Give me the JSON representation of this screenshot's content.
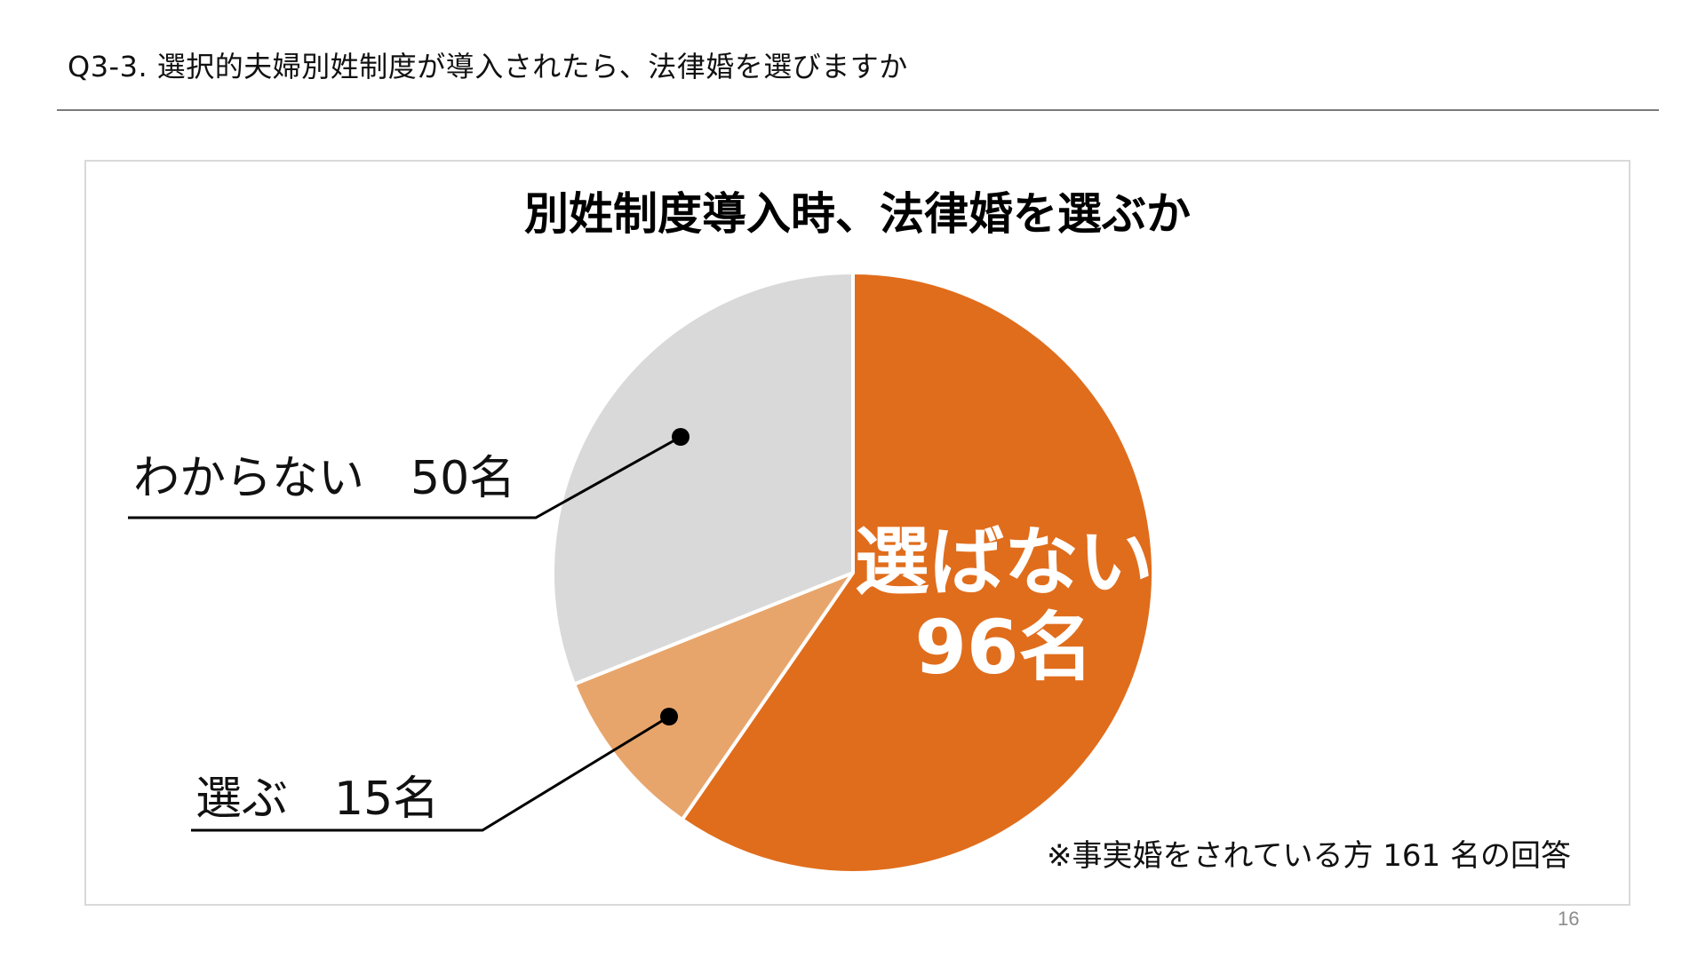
{
  "slide": {
    "heading": "Q3-3. 選択的夫婦別姓制度が導入されたら、法律婚を選びますか",
    "page_number": "16"
  },
  "chart_data": {
    "type": "pie",
    "title": "別姓制度導入時、法律婚を選ぶか",
    "categories": [
      "選ばない",
      "選ぶ",
      "わからない"
    ],
    "values": [
      96,
      15,
      50
    ],
    "unit": "名",
    "colors": [
      "#e06d1c",
      "#e8a56b",
      "#d9d9d9"
    ],
    "labels": {
      "not_choose_name": "選ばない",
      "not_choose_value": "96名",
      "choose": "選ぶ　15名",
      "unknown": "わからない　50名"
    },
    "note": "※事実婚をされている方 161 名の回答"
  }
}
